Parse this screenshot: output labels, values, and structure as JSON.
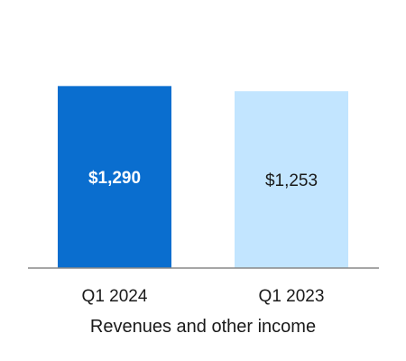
{
  "chart_data": {
    "type": "bar",
    "categories": [
      "Q1 2024",
      "Q1 2023"
    ],
    "values": [
      1290,
      1253
    ],
    "data_labels": [
      "$1,290",
      "$1,253"
    ],
    "bar_colors": [
      "#0A6ECF",
      "#C2E5FF"
    ],
    "data_label_colors": [
      "#FFFFFF",
      "#1A1A1A"
    ],
    "data_label_bold": [
      true,
      false
    ],
    "xlabel": "Revenues and other income",
    "ylim": [
      0,
      1900
    ],
    "grid": false,
    "legend": "none"
  }
}
